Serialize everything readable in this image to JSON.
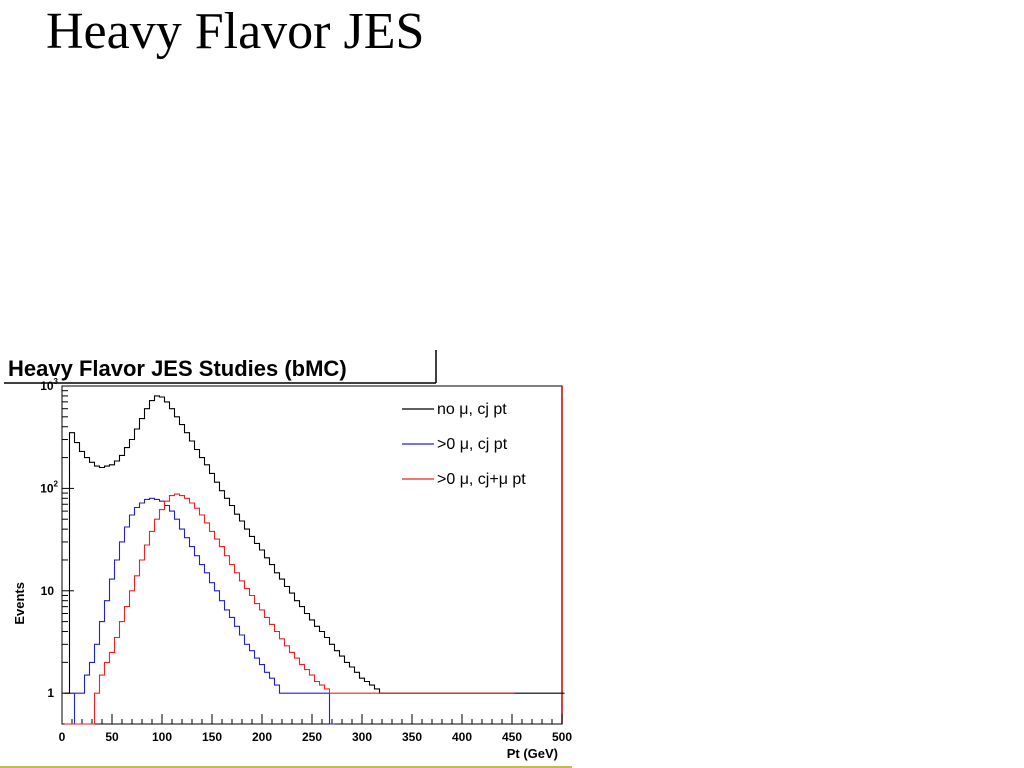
{
  "slide": {
    "title": "Heavy Flavor JES"
  },
  "colors": {
    "frame_right": "#cc0000",
    "title_box": "#000000",
    "bottom_rule": "#c8b84a"
  },
  "chart_data": {
    "type": "line",
    "title": "Heavy Flavor JES Studies (bMC)",
    "xlabel": "Pt (GeV)",
    "ylabel": "Events",
    "xlim": [
      0,
      500
    ],
    "ylim": [
      0.5,
      1000
    ],
    "y_scale": "log",
    "x_ticks": [
      "0",
      "50",
      "100",
      "150",
      "200",
      "250",
      "300",
      "350",
      "400",
      "450",
      "500"
    ],
    "y_ticks": [
      {
        "value": 1,
        "base": "1",
        "exp": ""
      },
      {
        "value": 10,
        "base": "10",
        "exp": ""
      },
      {
        "value": 100,
        "base": "10",
        "exp": "2"
      },
      {
        "value": 1000,
        "base": "10",
        "exp": "3"
      }
    ],
    "grid": false,
    "legend_position": "top-right",
    "series": [
      {
        "name": "no μ, cj pt",
        "color": "#000000",
        "x": [
          5,
          10,
          15,
          20,
          25,
          30,
          35,
          40,
          45,
          50,
          55,
          60,
          65,
          70,
          75,
          80,
          85,
          90,
          95,
          100,
          105,
          110,
          115,
          120,
          125,
          130,
          135,
          140,
          145,
          150,
          155,
          160,
          165,
          170,
          175,
          180,
          185,
          190,
          195,
          200,
          205,
          210,
          215,
          220,
          225,
          230,
          235,
          240,
          245,
          250,
          255,
          260,
          265,
          270,
          275,
          280,
          285,
          290,
          295,
          300,
          305,
          310,
          315,
          320,
          325,
          330,
          335,
          340,
          345,
          350,
          355,
          360,
          365,
          370,
          375,
          380,
          385,
          390,
          395,
          400,
          405,
          410,
          415,
          420,
          425,
          430,
          435,
          440,
          445,
          450,
          455,
          460,
          465,
          470,
          475,
          480,
          485,
          490,
          495,
          500
        ],
        "y": [
          1,
          350,
          280,
          230,
          200,
          180,
          165,
          160,
          165,
          170,
          185,
          210,
          250,
          300,
          380,
          480,
          600,
          720,
          800,
          780,
          700,
          600,
          500,
          420,
          350,
          290,
          240,
          200,
          170,
          140,
          115,
          95,
          80,
          68,
          56,
          48,
          40,
          34,
          29,
          25,
          21,
          18,
          15,
          13,
          11,
          9.5,
          8,
          7,
          6,
          5.2,
          4.5,
          4,
          3.5,
          3,
          2.6,
          2.3,
          2,
          1.8,
          1.6,
          1.4,
          1.3,
          1.2,
          1.1,
          1,
          1,
          1,
          1,
          1,
          1,
          1,
          1,
          1,
          1,
          1,
          1,
          1,
          1,
          1,
          1,
          1,
          1,
          1,
          1,
          1,
          1,
          1,
          1,
          1,
          1,
          1,
          1,
          1,
          1,
          1,
          1,
          1,
          1,
          1,
          1,
          1
        ]
      },
      {
        "name": ">0 μ, cj pt",
        "color": "#2222cc",
        "x": [
          5,
          10,
          15,
          20,
          25,
          30,
          35,
          40,
          45,
          50,
          55,
          60,
          65,
          70,
          75,
          80,
          85,
          90,
          95,
          100,
          105,
          110,
          115,
          120,
          125,
          130,
          135,
          140,
          145,
          150,
          155,
          160,
          165,
          170,
          175,
          180,
          185,
          190,
          195,
          200,
          205,
          210,
          215,
          220,
          225,
          230,
          235,
          240,
          245,
          250,
          255,
          260,
          265,
          270
        ],
        "y": [
          0.5,
          0.5,
          1,
          1,
          1.5,
          2,
          3,
          5,
          8,
          13,
          20,
          30,
          42,
          55,
          65,
          72,
          78,
          80,
          78,
          75,
          68,
          60,
          50,
          40,
          33,
          27,
          22,
          18,
          15,
          12,
          10,
          8,
          6.5,
          5.5,
          4.5,
          3.7,
          3,
          2.6,
          2.2,
          1.9,
          1.6,
          1.4,
          1.2,
          1,
          1,
          1,
          1,
          1,
          1,
          1,
          1,
          1,
          1,
          0.5
        ]
      },
      {
        "name": ">0 μ, cj+μ pt",
        "color": "#ee2222",
        "x": [
          5,
          10,
          15,
          20,
          25,
          30,
          35,
          40,
          45,
          50,
          55,
          60,
          65,
          70,
          75,
          80,
          85,
          90,
          95,
          100,
          105,
          110,
          115,
          120,
          125,
          130,
          135,
          140,
          145,
          150,
          155,
          160,
          165,
          170,
          175,
          180,
          185,
          190,
          195,
          200,
          205,
          210,
          215,
          220,
          225,
          230,
          235,
          240,
          245,
          250,
          255,
          260,
          265,
          270,
          275,
          280,
          285,
          290,
          295,
          300,
          305,
          310,
          315,
          320,
          325,
          330,
          335,
          340,
          345,
          350,
          355,
          360,
          365,
          370,
          375,
          380,
          385,
          390,
          395,
          400,
          405,
          410,
          415,
          420,
          425,
          430,
          435,
          440,
          445,
          450
        ],
        "y": [
          0.5,
          0.5,
          0.5,
          0.5,
          0.5,
          0.5,
          1,
          1.5,
          2,
          2.5,
          3.5,
          5,
          7,
          10,
          14,
          20,
          28,
          38,
          50,
          62,
          75,
          85,
          88,
          85,
          80,
          72,
          64,
          55,
          46,
          38,
          32,
          27,
          22,
          18,
          15,
          12.5,
          10.5,
          9,
          7.5,
          6.5,
          5.5,
          4.7,
          4,
          3.4,
          2.9,
          2.5,
          2.2,
          1.9,
          1.7,
          1.5,
          1.3,
          1.2,
          1.1,
          1,
          1,
          1,
          1,
          1,
          1,
          1,
          1,
          1,
          1,
          1,
          1,
          1,
          1,
          1,
          1,
          1,
          1,
          1,
          1,
          1,
          1,
          1,
          1,
          1,
          1,
          1,
          1,
          1,
          1,
          1,
          1,
          1,
          1,
          1,
          1,
          1
        ]
      }
    ]
  }
}
